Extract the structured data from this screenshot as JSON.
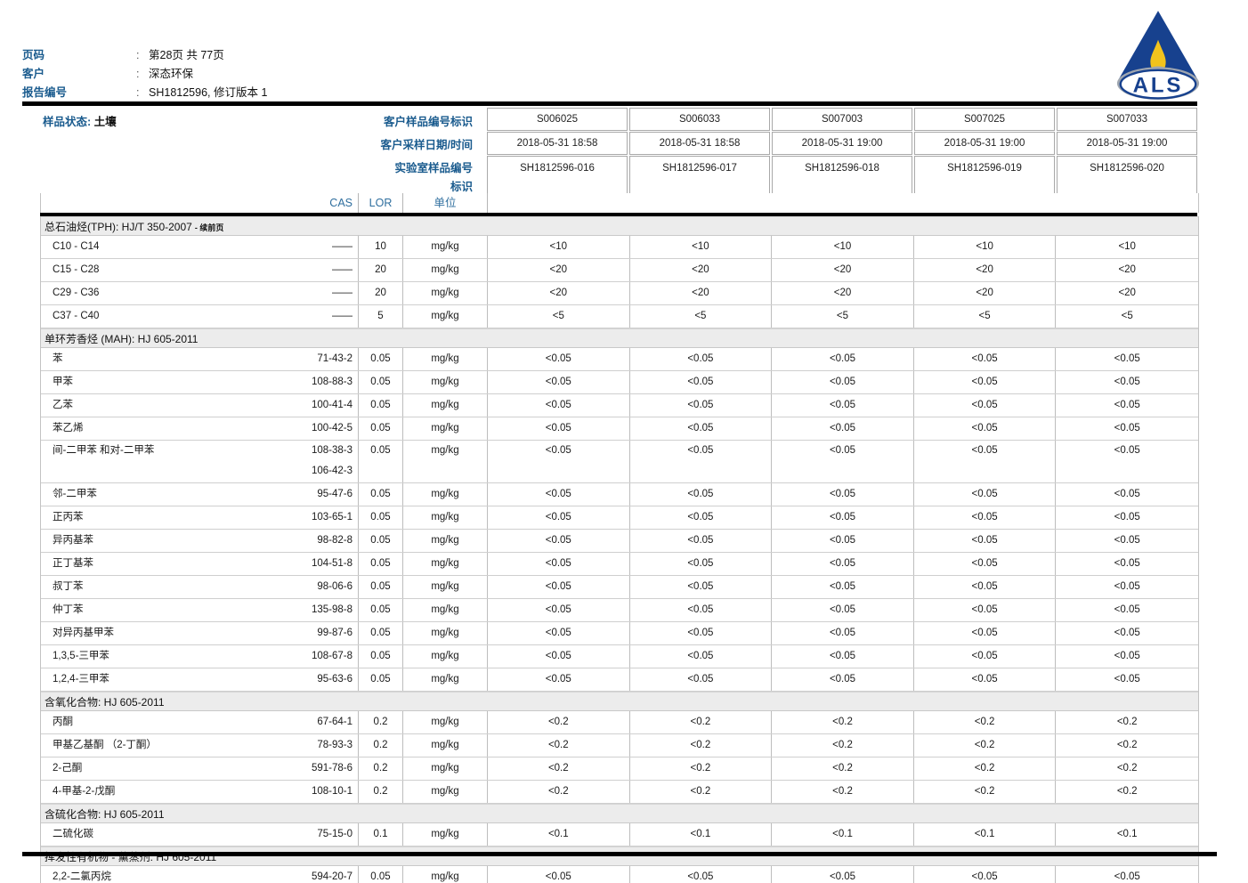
{
  "report": {
    "meta": [
      {
        "label": "页码",
        "colon": ":",
        "value": "第28页 共 77页"
      },
      {
        "label": "客户",
        "colon": ":",
        "value": "深态环保"
      },
      {
        "label": "报告编号",
        "colon": ":",
        "value": "SH1812596, 修订版本 1"
      }
    ],
    "logo": {
      "text": "ALS",
      "blue": "#17418e",
      "yellow": "#f2c31d",
      "gray": "#9fa6b0"
    },
    "colors": {
      "accent_blue": "#1a5b8e",
      "section_bg": "#ececec"
    },
    "sample_info": {
      "status_label": "样品状态:",
      "status_value": "土壤",
      "row_labels": [
        "客户样品编号标识",
        "客户采样日期/时间",
        "实验室样品编号",
        "标识"
      ],
      "samples": [
        {
          "client_id": "S006025",
          "sampled": "2018-05-31 18:58",
          "lab_id": "SH1812596-016"
        },
        {
          "client_id": "S006033",
          "sampled": "2018-05-31 18:58",
          "lab_id": "SH1812596-017"
        },
        {
          "client_id": "S007003",
          "sampled": "2018-05-31 19:00",
          "lab_id": "SH1812596-018"
        },
        {
          "client_id": "S007025",
          "sampled": "2018-05-31 19:00",
          "lab_id": "SH1812596-019"
        },
        {
          "client_id": "S007033",
          "sampled": "2018-05-31 19:00",
          "lab_id": "SH1812596-020"
        }
      ]
    },
    "table": {
      "header": {
        "cas": "CAS",
        "lor": "LOR",
        "unit": "单位"
      },
      "sections": [
        {
          "title": "总石油烃(TPH): HJ/T 350-2007",
          "suffix": "- 续前页",
          "rows": [
            {
              "name": "C10 - C14",
              "cas": [
                "——"
              ],
              "lor": "10",
              "unit": "mg/kg",
              "values": [
                "<10",
                "<10",
                "<10",
                "<10",
                "<10"
              ]
            },
            {
              "name": "C15 - C28",
              "cas": [
                "——"
              ],
              "lor": "20",
              "unit": "mg/kg",
              "values": [
                "<20",
                "<20",
                "<20",
                "<20",
                "<20"
              ]
            },
            {
              "name": "C29 - C36",
              "cas": [
                "——"
              ],
              "lor": "20",
              "unit": "mg/kg",
              "values": [
                "<20",
                "<20",
                "<20",
                "<20",
                "<20"
              ]
            },
            {
              "name": "C37 - C40",
              "cas": [
                "——"
              ],
              "lor": "5",
              "unit": "mg/kg",
              "values": [
                "<5",
                "<5",
                "<5",
                "<5",
                "<5"
              ]
            }
          ]
        },
        {
          "title": "单环芳香烃 (MAH): HJ 605-2011",
          "rows": [
            {
              "name": "苯",
              "cas": [
                "71-43-2"
              ],
              "lor": "0.05",
              "unit": "mg/kg",
              "values": [
                "<0.05",
                "<0.05",
                "<0.05",
                "<0.05",
                "<0.05"
              ]
            },
            {
              "name": "甲苯",
              "cas": [
                "108-88-3"
              ],
              "lor": "0.05",
              "unit": "mg/kg",
              "values": [
                "<0.05",
                "<0.05",
                "<0.05",
                "<0.05",
                "<0.05"
              ]
            },
            {
              "name": "乙苯",
              "cas": [
                "100-41-4"
              ],
              "lor": "0.05",
              "unit": "mg/kg",
              "values": [
                "<0.05",
                "<0.05",
                "<0.05",
                "<0.05",
                "<0.05"
              ]
            },
            {
              "name": "苯乙烯",
              "cas": [
                "100-42-5"
              ],
              "lor": "0.05",
              "unit": "mg/kg",
              "values": [
                "<0.05",
                "<0.05",
                "<0.05",
                "<0.05",
                "<0.05"
              ]
            },
            {
              "name": "间-二甲苯 和对-二甲苯",
              "cas": [
                "108-38-3",
                "106-42-3"
              ],
              "lor": "0.05",
              "unit": "mg/kg",
              "values": [
                "<0.05",
                "<0.05",
                "<0.05",
                "<0.05",
                "<0.05"
              ]
            },
            {
              "name": "邻-二甲苯",
              "cas": [
                "95-47-6"
              ],
              "lor": "0.05",
              "unit": "mg/kg",
              "values": [
                "<0.05",
                "<0.05",
                "<0.05",
                "<0.05",
                "<0.05"
              ]
            },
            {
              "name": "正丙苯",
              "cas": [
                "103-65-1"
              ],
              "lor": "0.05",
              "unit": "mg/kg",
              "values": [
                "<0.05",
                "<0.05",
                "<0.05",
                "<0.05",
                "<0.05"
              ]
            },
            {
              "name": "异丙基苯",
              "cas": [
                "98-82-8"
              ],
              "lor": "0.05",
              "unit": "mg/kg",
              "values": [
                "<0.05",
                "<0.05",
                "<0.05",
                "<0.05",
                "<0.05"
              ]
            },
            {
              "name": "正丁基苯",
              "cas": [
                "104-51-8"
              ],
              "lor": "0.05",
              "unit": "mg/kg",
              "values": [
                "<0.05",
                "<0.05",
                "<0.05",
                "<0.05",
                "<0.05"
              ]
            },
            {
              "name": "叔丁苯",
              "cas": [
                "98-06-6"
              ],
              "lor": "0.05",
              "unit": "mg/kg",
              "values": [
                "<0.05",
                "<0.05",
                "<0.05",
                "<0.05",
                "<0.05"
              ]
            },
            {
              "name": "仲丁苯",
              "cas": [
                "135-98-8"
              ],
              "lor": "0.05",
              "unit": "mg/kg",
              "values": [
                "<0.05",
                "<0.05",
                "<0.05",
                "<0.05",
                "<0.05"
              ]
            },
            {
              "name": "对异丙基甲苯",
              "cas": [
                "99-87-6"
              ],
              "lor": "0.05",
              "unit": "mg/kg",
              "values": [
                "<0.05",
                "<0.05",
                "<0.05",
                "<0.05",
                "<0.05"
              ]
            },
            {
              "name": "1,3,5-三甲苯",
              "cas": [
                "108-67-8"
              ],
              "lor": "0.05",
              "unit": "mg/kg",
              "values": [
                "<0.05",
                "<0.05",
                "<0.05",
                "<0.05",
                "<0.05"
              ]
            },
            {
              "name": "1,2,4-三甲苯",
              "cas": [
                "95-63-6"
              ],
              "lor": "0.05",
              "unit": "mg/kg",
              "values": [
                "<0.05",
                "<0.05",
                "<0.05",
                "<0.05",
                "<0.05"
              ]
            }
          ]
        },
        {
          "title": "含氧化合物: HJ 605-2011",
          "rows": [
            {
              "name": "丙酮",
              "cas": [
                "67-64-1"
              ],
              "lor": "0.2",
              "unit": "mg/kg",
              "values": [
                "<0.2",
                "<0.2",
                "<0.2",
                "<0.2",
                "<0.2"
              ]
            },
            {
              "name": "甲基乙基酮 （2-丁酮）",
              "cas": [
                "78-93-3"
              ],
              "lor": "0.2",
              "unit": "mg/kg",
              "values": [
                "<0.2",
                "<0.2",
                "<0.2",
                "<0.2",
                "<0.2"
              ]
            },
            {
              "name": "2-己酮",
              "cas": [
                "591-78-6"
              ],
              "lor": "0.2",
              "unit": "mg/kg",
              "values": [
                "<0.2",
                "<0.2",
                "<0.2",
                "<0.2",
                "<0.2"
              ]
            },
            {
              "name": "4-甲基-2-戊酮",
              "cas": [
                "108-10-1"
              ],
              "lor": "0.2",
              "unit": "mg/kg",
              "values": [
                "<0.2",
                "<0.2",
                "<0.2",
                "<0.2",
                "<0.2"
              ]
            }
          ]
        },
        {
          "title": "含硫化合物: HJ 605-2011",
          "rows": [
            {
              "name": "二硫化碳",
              "cas": [
                "75-15-0"
              ],
              "lor": "0.1",
              "unit": "mg/kg",
              "values": [
                "<0.1",
                "<0.1",
                "<0.1",
                "<0.1",
                "<0.1"
              ]
            }
          ]
        },
        {
          "title": "挥发性有机物 - 薰蒸剂: HJ 605-2011",
          "rows": [
            {
              "name": "2,2-二氯丙烷",
              "cas": [
                "594-20-7"
              ],
              "lor": "0.05",
              "unit": "mg/kg",
              "values": [
                "<0.05",
                "<0.05",
                "<0.05",
                "<0.05",
                "<0.05"
              ]
            }
          ]
        }
      ]
    }
  }
}
